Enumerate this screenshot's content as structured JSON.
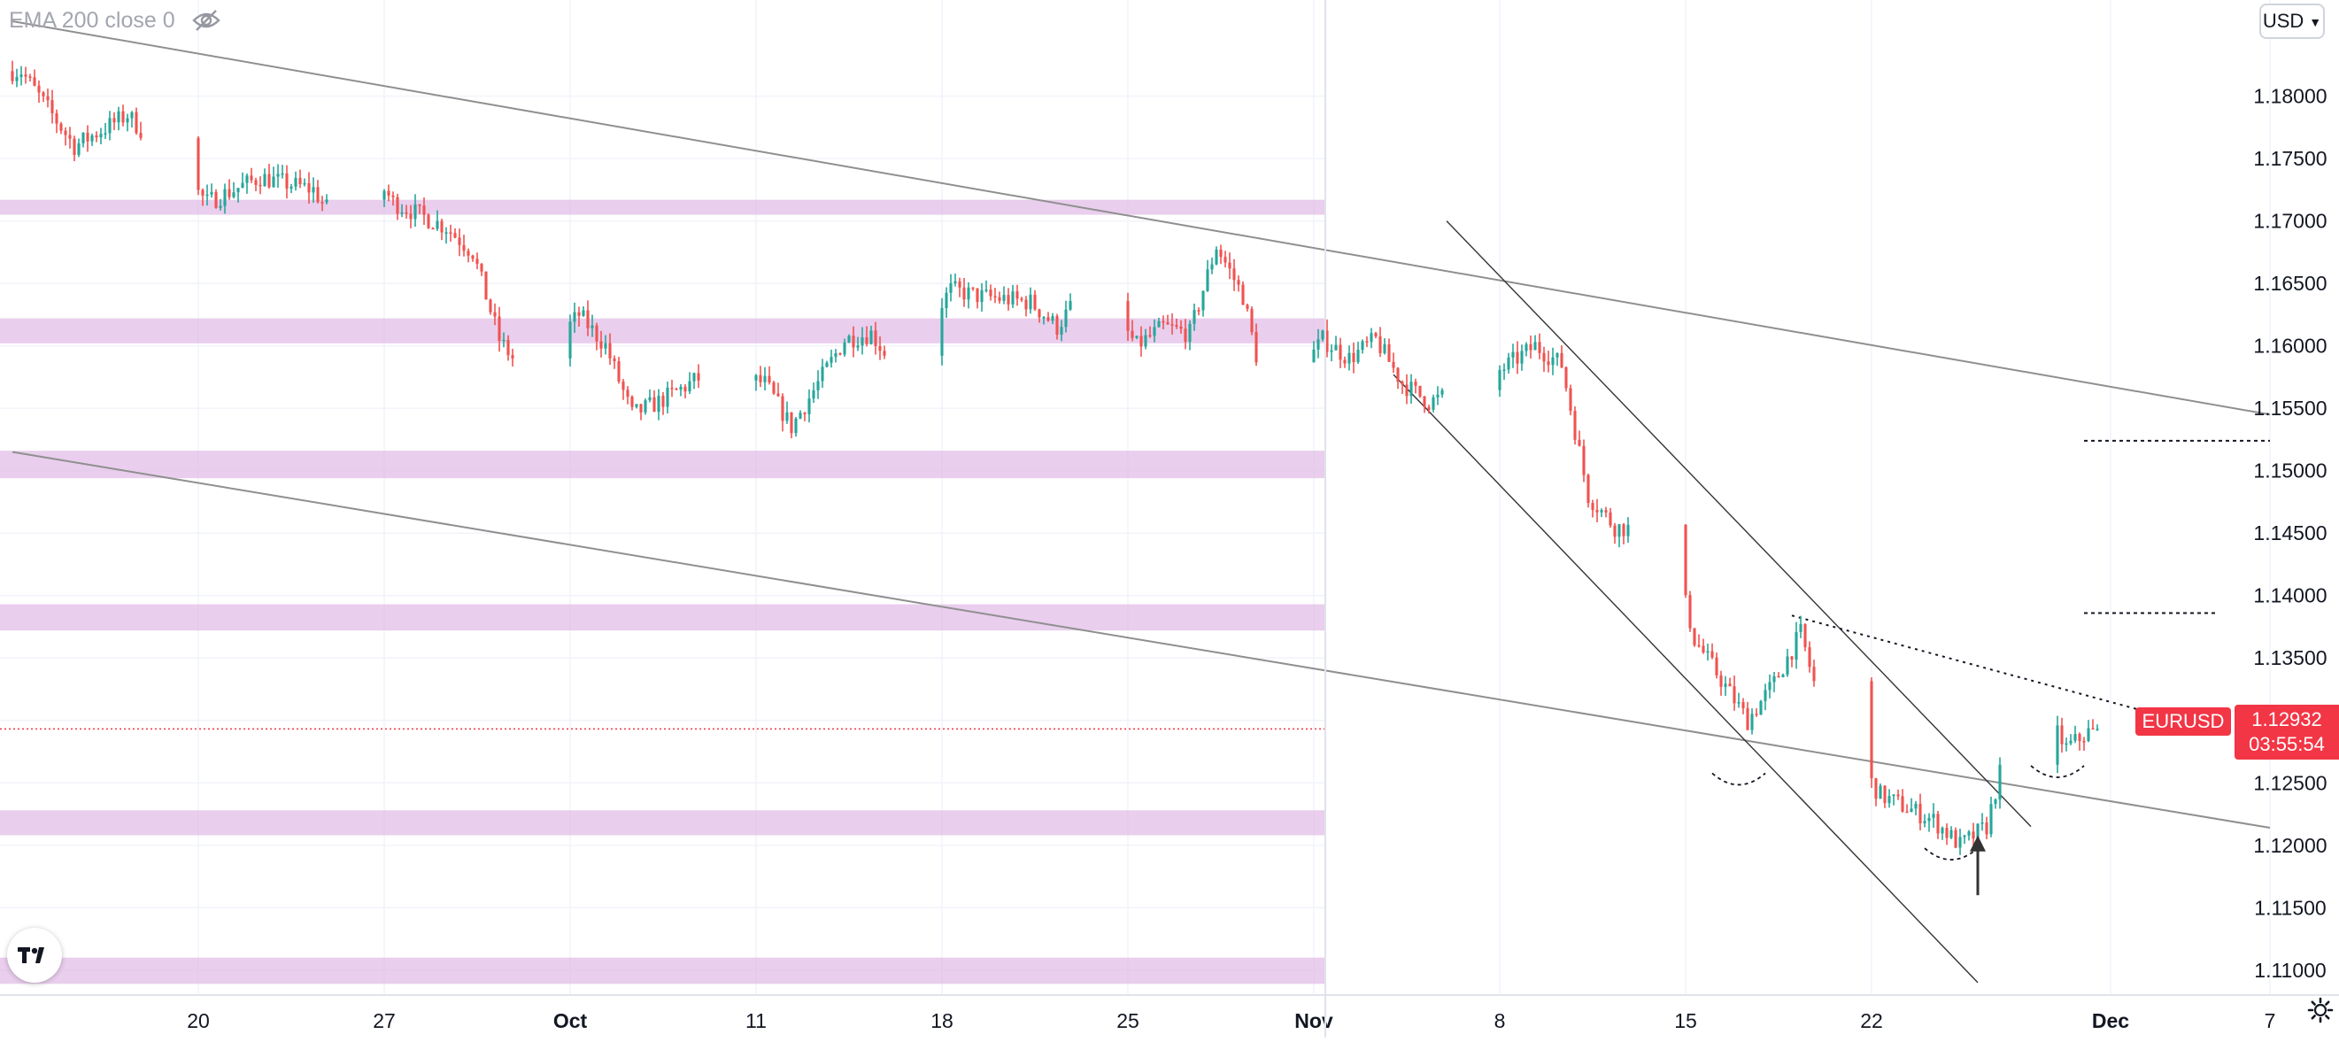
{
  "legend": {
    "indicator": "EMA 200 close 0",
    "eye_icon": "eye-off-icon"
  },
  "currency_button": {
    "label": "USD",
    "icon": "chevron-down-icon"
  },
  "price_badge": {
    "symbol": "EURUSD",
    "price": "1.12932",
    "countdown": "03:55:54"
  },
  "colors": {
    "up": "#26a69a",
    "down": "#ef5350",
    "zone": "#e1bee7",
    "channel": "#8f8f8f",
    "last_price": "#f23645"
  },
  "icons": {
    "logo": "tradingview-logo-icon",
    "settings": "gear-icon"
  },
  "chart_data": {
    "type": "candlestick",
    "symbol": "EURUSD",
    "timeframe": "4h",
    "x_ticks": [
      "20",
      "27",
      "Oct",
      "11",
      "18",
      "25",
      "Nov",
      "8",
      "15",
      "22",
      "Dec",
      "7"
    ],
    "y_ticks": [
      "1.18000",
      "1.17500",
      "1.17000",
      "1.16500",
      "1.16000",
      "1.15500",
      "1.15000",
      "1.14500",
      "1.14000",
      "1.13500",
      "1.13000",
      "1.12500",
      "1.12000",
      "1.11500",
      "1.11000"
    ],
    "ylim": [
      1.108,
      1.1877
    ],
    "last_price": 1.12932,
    "ema": {
      "name": "EMA 200 close 0",
      "visible": false
    },
    "zones": [
      {
        "from": 1.1705,
        "to": 1.1717
      },
      {
        "from": 1.1602,
        "to": 1.1622
      },
      {
        "from": 1.1494,
        "to": 1.1516
      },
      {
        "from": 1.1372,
        "to": 1.1393
      },
      {
        "from": 1.1208,
        "to": 1.1228
      },
      {
        "from": 1.1089,
        "to": 1.111
      }
    ],
    "trendlines": [
      {
        "style": "channel",
        "from": [
          "2021-09-13",
          1.186
        ],
        "to": [
          "2021-12-07",
          1.1545
        ]
      },
      {
        "style": "channel",
        "from": [
          "2021-09-13",
          1.1515
        ],
        "to": [
          "2021-12-07",
          1.1214
        ]
      },
      {
        "style": "thin",
        "from": [
          "2021-11-06",
          1.17
        ],
        "to": [
          "2021-11-28",
          1.1215
        ]
      },
      {
        "style": "thin",
        "from": [
          "2021-11-04",
          1.1577
        ],
        "to": [
          "2021-11-26",
          1.109
        ]
      },
      {
        "style": "dotted",
        "from": [
          "2021-11-19",
          1.1384
        ],
        "to": [
          "2021-12-02",
          1.1309
        ]
      },
      {
        "style": "dashed",
        "from": [
          "2021-11-30",
          1.1524
        ],
        "to": [
          "2021-12-07",
          1.1524
        ]
      },
      {
        "style": "dashed",
        "from": [
          "2021-11-30",
          1.1386
        ],
        "to": [
          "2021-12-05",
          1.1386
        ]
      }
    ],
    "arcs": [
      {
        "at": "2021-11-17",
        "price": 1.1252
      },
      {
        "at": "2021-11-25",
        "price": 1.1192
      },
      {
        "at": "2021-11-29",
        "price": 1.1258
      }
    ],
    "arrow": {
      "at": "2021-11-26",
      "from": 1.116,
      "to": 1.1205
    },
    "keypoints": [
      [
        "2021-09-13",
        1.182
      ],
      [
        "2021-09-15",
        1.176
      ],
      [
        "2021-09-17",
        1.1785
      ],
      [
        "2021-09-20",
        1.1715
      ],
      [
        "2021-09-22",
        1.1735
      ],
      [
        "2021-09-24",
        1.1725
      ],
      [
        "2021-09-25",
        1.1695
      ],
      [
        "2021-09-26",
        1.1745
      ],
      [
        "2021-09-27",
        1.1715
      ],
      [
        "2021-09-29",
        1.1695
      ],
      [
        "2021-09-30",
        1.1675
      ],
      [
        "2021-10-01",
        1.1605
      ],
      [
        "2021-10-02",
        1.1575
      ],
      [
        "2021-10-04",
        1.1625
      ],
      [
        "2021-10-05",
        1.16
      ],
      [
        "2021-10-06",
        1.1545
      ],
      [
        "2021-10-07",
        1.1555
      ],
      [
        "2021-10-09",
        1.158
      ],
      [
        "2021-10-11",
        1.157
      ],
      [
        "2021-10-12",
        1.1535
      ],
      [
        "2021-10-14",
        1.1605
      ],
      [
        "2021-10-15",
        1.161
      ],
      [
        "2021-10-16",
        1.158
      ],
      [
        "2021-10-18",
        1.1645
      ],
      [
        "2021-10-19",
        1.164
      ],
      [
        "2021-10-21",
        1.1635
      ],
      [
        "2021-10-22",
        1.1615
      ],
      [
        "2021-10-23",
        1.1645
      ],
      [
        "2021-10-24",
        1.163
      ],
      [
        "2021-10-25",
        1.16
      ],
      [
        "2021-10-26",
        1.1615
      ],
      [
        "2021-10-27",
        1.161
      ],
      [
        "2021-10-28",
        1.168
      ],
      [
        "2021-10-29",
        1.164
      ],
      [
        "2021-10-30",
        1.1545
      ],
      [
        "2021-11-01",
        1.1605
      ],
      [
        "2021-11-02",
        1.159
      ],
      [
        "2021-11-03",
        1.1605
      ],
      [
        "2021-11-04",
        1.157
      ],
      [
        "2021-11-05",
        1.1555
      ],
      [
        "2021-11-07",
        1.157
      ],
      [
        "2021-11-09",
        1.16
      ],
      [
        "2021-11-10",
        1.1585
      ],
      [
        "2021-11-11",
        1.148
      ],
      [
        "2021-11-12",
        1.1455
      ],
      [
        "2021-11-14",
        1.145
      ],
      [
        "2021-11-15",
        1.1365
      ],
      [
        "2021-11-17",
        1.13
      ],
      [
        "2021-11-18",
        1.133
      ],
      [
        "2021-11-19",
        1.137
      ],
      [
        "2021-11-20",
        1.129
      ],
      [
        "2021-11-21",
        1.127
      ],
      [
        "2021-11-22",
        1.124
      ],
      [
        "2021-11-23",
        1.123
      ],
      [
        "2021-11-24",
        1.122
      ],
      [
        "2021-11-25",
        1.12
      ],
      [
        "2021-11-26",
        1.1215
      ],
      [
        "2021-11-27",
        1.13
      ],
      [
        "2021-11-28",
        1.1312
      ],
      [
        "2021-11-29",
        1.1278
      ],
      [
        "2021-11-30",
        1.1293
      ]
    ]
  }
}
